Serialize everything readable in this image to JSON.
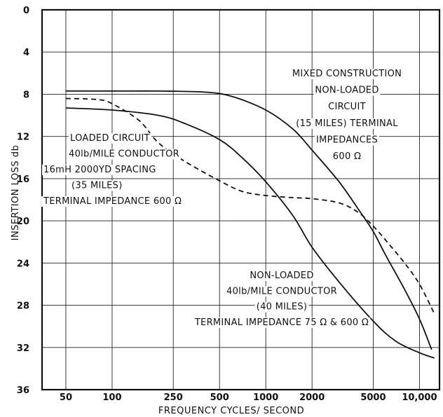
{
  "chart_data": {
    "type": "line",
    "title": "",
    "xlabel": "FREQUENCY   CYCLES/ SECOND",
    "ylabel": "INSERTION  LOSS  db",
    "x_scale": "log",
    "xlim": [
      35,
      13500
    ],
    "ylim": [
      0,
      36
    ],
    "y_inverted": true,
    "grid": true,
    "x_ticks": [
      {
        "value": 50,
        "label": "50"
      },
      {
        "value": 100,
        "label": "100"
      },
      {
        "value": 250,
        "label": "250"
      },
      {
        "value": 500,
        "label": "500"
      },
      {
        "value": 1000,
        "label": "1000"
      },
      {
        "value": 2000,
        "label": "2000"
      },
      {
        "value": 5000,
        "label": "5000"
      },
      {
        "value": 10000,
        "label": "10,000"
      }
    ],
    "y_ticks": [
      {
        "value": 0,
        "label": "0"
      },
      {
        "value": 4,
        "label": "4"
      },
      {
        "value": 8,
        "label": "8"
      },
      {
        "value": 12,
        "label": "12"
      },
      {
        "value": 16,
        "label": "16"
      },
      {
        "value": 20,
        "label": "20"
      },
      {
        "value": 24,
        "label": "24"
      },
      {
        "value": 28,
        "label": "28"
      },
      {
        "value": 32,
        "label": "32"
      },
      {
        "value": 36,
        "label": "36"
      }
    ],
    "series": [
      {
        "style": "solid",
        "points": [
          [
            50,
            7.7
          ],
          [
            100,
            7.7
          ],
          [
            200,
            7.7
          ],
          [
            400,
            7.8
          ],
          [
            600,
            8.2
          ],
          [
            1000,
            9.5
          ],
          [
            1500,
            11.3
          ],
          [
            2000,
            13.3
          ],
          [
            3000,
            16.3
          ],
          [
            4000,
            18.9
          ],
          [
            5000,
            21.0
          ],
          [
            6000,
            23.2
          ],
          [
            8000,
            26.5
          ],
          [
            10000,
            29.3
          ],
          [
            12000,
            32.2
          ]
        ]
      },
      {
        "style": "solid",
        "points": [
          [
            50,
            9.3
          ],
          [
            100,
            9.5
          ],
          [
            200,
            10.0
          ],
          [
            300,
            10.8
          ],
          [
            500,
            12.3
          ],
          [
            700,
            14.0
          ],
          [
            1000,
            16.3
          ],
          [
            1500,
            19.5
          ],
          [
            2000,
            22.5
          ],
          [
            3000,
            25.8
          ],
          [
            5000,
            29.5
          ],
          [
            7000,
            31.4
          ],
          [
            10000,
            32.5
          ],
          [
            12500,
            33.0
          ]
        ]
      },
      {
        "style": "dashed",
        "points": [
          [
            50,
            8.4
          ],
          [
            80,
            8.5
          ],
          [
            100,
            8.9
          ],
          [
            150,
            10.5
          ],
          [
            200,
            12.6
          ],
          [
            300,
            14.4
          ],
          [
            500,
            16.2
          ],
          [
            700,
            17.2
          ],
          [
            1000,
            17.6
          ],
          [
            1500,
            17.8
          ],
          [
            2000,
            17.9
          ],
          [
            3000,
            18.3
          ],
          [
            4000,
            19.2
          ],
          [
            5000,
            20.5
          ],
          [
            6000,
            21.8
          ],
          [
            8000,
            24.0
          ],
          [
            10000,
            26.0
          ],
          [
            12500,
            28.8
          ]
        ]
      }
    ],
    "annotations": [
      {
        "anchor": "top-right",
        "lines": [
          "MIXED CONSTRUCTION",
          "NON-LOADED",
          "CIRCUIT",
          "(15 MILES) TERMINAL",
          "IMPEDANCES",
          "600 Ω"
        ]
      },
      {
        "anchor": "upper-left",
        "lines": [
          "LOADED CIRCUIT",
          "40lb/MILE CONDUCTOR",
          "16mH 2000YD SPACING",
          "(35 MILES)",
          "TERMINAL  IMPEDANCE 600 Ω"
        ]
      },
      {
        "anchor": "lower-right",
        "lines": [
          "NON-LOADED",
          "40lb/MILE CONDUCTOR",
          "(40 MILES)",
          "TERMINAL  IMPEDANCE  75 Ω & 600 Ω"
        ]
      }
    ]
  }
}
